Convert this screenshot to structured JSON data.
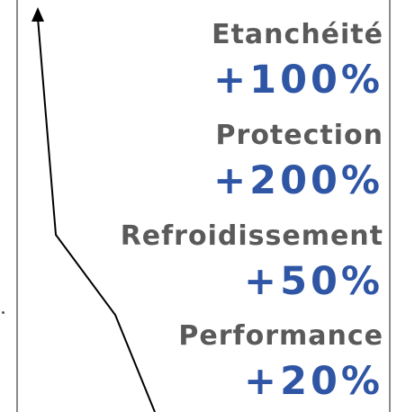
{
  "colors": {
    "label": "#5a5a5a",
    "value": "#2f55a5",
    "line": "#000000",
    "border": "#8a8a8a"
  },
  "items": [
    {
      "label": "Etanchéité",
      "value": "+100%"
    },
    {
      "label": "Protection",
      "value": "+200%"
    },
    {
      "label": "Refroidissement",
      "value": "+50%"
    },
    {
      "label": "Performance",
      "value": "+20%"
    }
  ]
}
